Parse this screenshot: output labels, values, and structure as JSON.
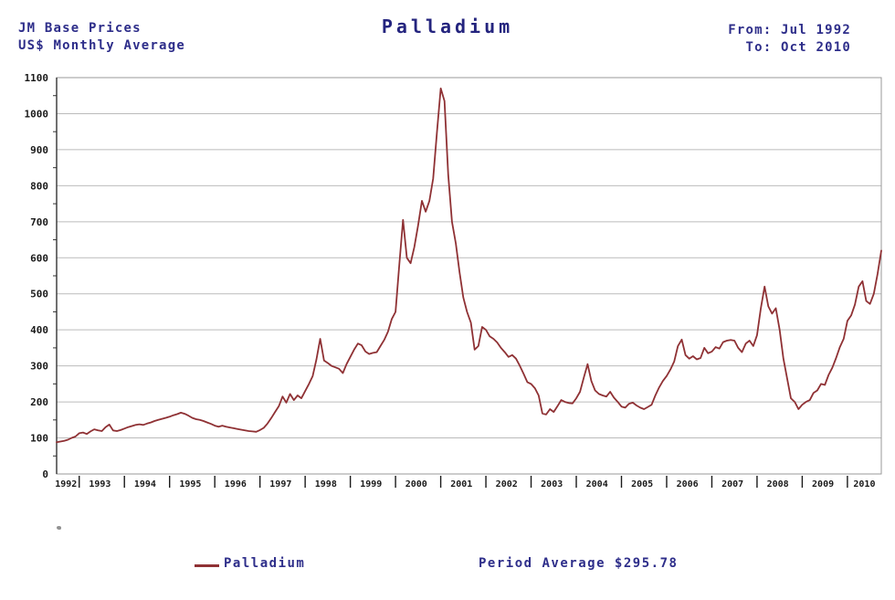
{
  "header": {
    "source_line1": "JM Base Prices",
    "source_line2": "US$ Monthly Average",
    "title": "Palladium",
    "from_label": "From: Jul 1992",
    "to_label": "To: Oct 2010"
  },
  "legend": {
    "series_label": "Palladium",
    "period_average_label": "Period Average $295.78"
  },
  "colors": {
    "line": "#8f3134",
    "heading_text": "#2e2e8a",
    "axis_text": "#1a1a1a",
    "grid": "#bbbbbb",
    "frame": "#999999",
    "axis": "#333333"
  },
  "chart_data": {
    "type": "line",
    "title": "Palladium",
    "subtitle": "JM Base Prices, US$ Monthly Average",
    "series_name": "Palladium",
    "ylabel": "US$",
    "xlabel": "",
    "x_start": "Jul 1992",
    "x_end": "Oct 2010",
    "ylim": [
      0,
      1100
    ],
    "y_step": 100,
    "y_minor_step": 50,
    "grid": true,
    "legend_position": "bottom",
    "period_average": 295.78,
    "x_tick_years": [
      "1992",
      "1993",
      "1994",
      "1995",
      "1996",
      "1997",
      "1998",
      "1999",
      "2000",
      "2001",
      "2002",
      "2003",
      "2004",
      "2005",
      "2006",
      "2007",
      "2008",
      "2009",
      "2010"
    ],
    "first_year_start_month": 7,
    "values": [
      88,
      90,
      92,
      95,
      100,
      104,
      113,
      115,
      111,
      118,
      124,
      121,
      119,
      130,
      137,
      121,
      119,
      122,
      126,
      130,
      133,
      136,
      138,
      136,
      140,
      143,
      147,
      150,
      153,
      156,
      159,
      163,
      166,
      170,
      167,
      162,
      156,
      152,
      150,
      147,
      143,
      139,
      134,
      131,
      134,
      131,
      129,
      127,
      125,
      123,
      121,
      119,
      118,
      117,
      122,
      128,
      140,
      155,
      172,
      188,
      215,
      198,
      222,
      205,
      218,
      210,
      230,
      250,
      272,
      318,
      375,
      315,
      308,
      300,
      296,
      292,
      280,
      305,
      325,
      345,
      362,
      357,
      340,
      333,
      336,
      338,
      355,
      372,
      395,
      430,
      450,
      580,
      705,
      600,
      585,
      630,
      690,
      758,
      728,
      758,
      820,
      950,
      1070,
      1035,
      830,
      700,
      640,
      560,
      490,
      450,
      420,
      345,
      355,
      408,
      400,
      382,
      375,
      365,
      350,
      338,
      325,
      330,
      320,
      300,
      278,
      255,
      250,
      238,
      218,
      168,
      165,
      180,
      172,
      188,
      205,
      200,
      197,
      196,
      210,
      228,
      268,
      305,
      258,
      232,
      222,
      218,
      215,
      228,
      212,
      200,
      187,
      184,
      195,
      198,
      190,
      184,
      180,
      186,
      192,
      218,
      240,
      258,
      272,
      290,
      312,
      355,
      373,
      330,
      320,
      327,
      318,
      322,
      350,
      335,
      340,
      352,
      348,
      366,
      370,
      372,
      370,
      350,
      338,
      362,
      370,
      355,
      385,
      460,
      520,
      465,
      445,
      460,
      400,
      320,
      265,
      210,
      200,
      180,
      192,
      200,
      205,
      225,
      232,
      250,
      247,
      275,
      295,
      322,
      352,
      375,
      425,
      440,
      470,
      520,
      535,
      480,
      472,
      500,
      555,
      620
    ]
  }
}
